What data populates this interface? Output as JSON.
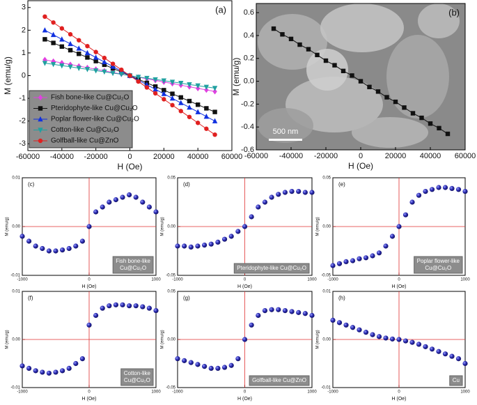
{
  "chart_data": [
    {
      "type": "line",
      "label": "(a)",
      "xlabel": "H (Oe)",
      "ylabel": "M (emu/g)",
      "xlim": [
        -60000,
        60000
      ],
      "xticks": [
        -60000,
        -40000,
        -20000,
        0,
        20000,
        40000,
        60000
      ],
      "ylim": [
        -3.3,
        3.3
      ],
      "yticks": [
        -3,
        -2,
        -1,
        0,
        1,
        2,
        3
      ],
      "legend": "lower left",
      "x": [
        -50000,
        -45000,
        -40000,
        -35000,
        -30000,
        -25000,
        -20000,
        -15000,
        -10000,
        -5000,
        0,
        5000,
        10000,
        15000,
        20000,
        25000,
        30000,
        35000,
        40000,
        45000,
        50000
      ],
      "series": [
        {
          "name": "Fish bone-like Cu@Cu₂O",
          "color": "#e040e0",
          "marker": "diamond",
          "values": [
            0.7,
            0.63,
            0.56,
            0.49,
            0.42,
            0.35,
            0.28,
            0.21,
            0.14,
            0.07,
            0,
            -0.07,
            -0.14,
            -0.21,
            -0.28,
            -0.35,
            -0.42,
            -0.49,
            -0.56,
            -0.63,
            -0.7
          ]
        },
        {
          "name": "Pteridophyte-like Cu@Cu₂O",
          "color": "#111111",
          "marker": "square",
          "values": [
            1.6,
            1.44,
            1.28,
            1.12,
            0.96,
            0.8,
            0.64,
            0.48,
            0.32,
            0.16,
            0,
            -0.16,
            -0.32,
            -0.48,
            -0.64,
            -0.8,
            -0.96,
            -1.12,
            -1.28,
            -1.44,
            -1.6
          ]
        },
        {
          "name": "Poplar flower-like Cu@Cu₂O",
          "color": "#1030e0",
          "marker": "triangle",
          "values": [
            2.0,
            1.8,
            1.6,
            1.4,
            1.2,
            1.0,
            0.8,
            0.6,
            0.4,
            0.2,
            0,
            -0.2,
            -0.4,
            -0.6,
            -0.8,
            -1.0,
            -1.2,
            -1.4,
            -1.6,
            -1.8,
            -2.0
          ]
        },
        {
          "name": "Cotton-like Cu@Cu₂O",
          "color": "#20a0a0",
          "marker": "down",
          "values": [
            0.55,
            0.5,
            0.44,
            0.39,
            0.33,
            0.28,
            0.22,
            0.17,
            0.11,
            0.06,
            0,
            -0.06,
            -0.11,
            -0.17,
            -0.22,
            -0.28,
            -0.33,
            -0.39,
            -0.44,
            -0.5,
            -0.55
          ]
        },
        {
          "name": "Golfball-like Cu@ZnO",
          "color": "#e02020",
          "marker": "circle",
          "values": [
            2.6,
            2.34,
            2.08,
            1.82,
            1.56,
            1.3,
            1.04,
            0.78,
            0.52,
            0.26,
            0,
            -0.26,
            -0.52,
            -0.78,
            -1.04,
            -1.3,
            -1.56,
            -1.82,
            -2.08,
            -2.34,
            -2.6
          ]
        }
      ]
    },
    {
      "type": "line",
      "label": "(b)",
      "xlabel": "H (Oe)",
      "ylabel": "M (emu/g)",
      "annotation": "500 nm",
      "xlim": [
        -60000,
        60000
      ],
      "xticks": [
        -60000,
        -40000,
        -20000,
        0,
        20000,
        40000,
        60000
      ],
      "ylim": [
        -0.6,
        0.68
      ],
      "yticks": [
        -0.6,
        -0.4,
        -0.2,
        {
          "value": 0,
          "label": "0.0"
        },
        0.2,
        0.4,
        0.6
      ],
      "x": [
        -50000,
        -45000,
        -40000,
        -35000,
        -30000,
        -25000,
        -20000,
        -15000,
        -10000,
        -5000,
        0,
        5000,
        10000,
        15000,
        20000,
        25000,
        30000,
        35000,
        40000,
        45000,
        50000
      ],
      "series": [
        {
          "color": "#111111",
          "marker": "square",
          "values": [
            0.46,
            0.41,
            0.37,
            0.32,
            0.28,
            0.23,
            0.18,
            0.14,
            0.09,
            0.05,
            0,
            -0.05,
            -0.09,
            -0.14,
            -0.18,
            -0.23,
            -0.28,
            -0.32,
            -0.37,
            -0.41,
            -0.46
          ]
        }
      ]
    },
    {
      "type": "scatter",
      "label": "(c)",
      "xlabel": "H (Oe)",
      "ylabel": "M (emu/g)",
      "label_lines": [
        "Fish bone-like",
        "Cu@Cu₂O"
      ],
      "xlim": [
        -1000,
        1000
      ],
      "xticks": [
        -1000,
        0,
        1000
      ],
      "ylim": [
        -0.01,
        0.01
      ],
      "yticks": [
        -0.01,
        {
          "value": 0,
          "label": "0.00"
        },
        0.01
      ],
      "x": [
        -1000,
        -900,
        -800,
        -700,
        -600,
        -500,
        -400,
        -300,
        -200,
        -100,
        0,
        100,
        200,
        300,
        400,
        500,
        600,
        700,
        800,
        900,
        1000
      ],
      "values": [
        -0.002,
        -0.003,
        -0.004,
        -0.0045,
        -0.005,
        -0.005,
        -0.0048,
        -0.0045,
        -0.004,
        -0.003,
        0.0,
        0.003,
        0.004,
        0.005,
        0.0055,
        0.006,
        0.0065,
        0.006,
        0.005,
        0.004,
        0.003
      ]
    },
    {
      "type": "scatter",
      "label": "(d)",
      "xlabel": "H (Oe)",
      "ylabel": "M (emu/g)",
      "label_lines": [
        "Pteridophyte-like Cu@Cu₂O"
      ],
      "xlim": [
        -1000,
        1000
      ],
      "xticks": [
        -1000,
        0,
        1000
      ],
      "ylim": [
        -0.05,
        0.05
      ],
      "yticks": [
        -0.05,
        {
          "value": 0,
          "label": "0.00"
        },
        0.05
      ],
      "x": [
        -1000,
        -900,
        -800,
        -700,
        -600,
        -500,
        -400,
        -300,
        -200,
        -100,
        0,
        100,
        200,
        300,
        400,
        500,
        600,
        700,
        800,
        900,
        1000
      ],
      "values": [
        -0.02,
        -0.02,
        -0.021,
        -0.02,
        -0.019,
        -0.018,
        -0.016,
        -0.013,
        -0.01,
        -0.005,
        0.0,
        0.01,
        0.02,
        0.025,
        0.03,
        0.033,
        0.035,
        0.036,
        0.036,
        0.035,
        0.035
      ]
    },
    {
      "type": "scatter",
      "label": "(e)",
      "xlabel": "H (Oe)",
      "ylabel": "M (emu/g)",
      "label_lines": [
        "Poplar flower-like",
        "Cu@Cu₂O"
      ],
      "xlim": [
        -1000,
        1000
      ],
      "xticks": [
        -1000,
        0,
        1000
      ],
      "ylim": [
        -0.05,
        0.05
      ],
      "yticks": [
        -0.05,
        {
          "value": 0,
          "label": "0.00"
        },
        0.05
      ],
      "x": [
        -1000,
        -900,
        -800,
        -700,
        -600,
        -500,
        -400,
        -300,
        -200,
        -100,
        0,
        100,
        200,
        300,
        400,
        500,
        600,
        700,
        800,
        900,
        1000
      ],
      "values": [
        -0.04,
        -0.038,
        -0.036,
        -0.035,
        -0.033,
        -0.032,
        -0.03,
        -0.027,
        -0.02,
        -0.01,
        0.0,
        0.012,
        0.025,
        0.032,
        0.036,
        0.038,
        0.04,
        0.04,
        0.039,
        0.038,
        0.036
      ]
    },
    {
      "type": "scatter",
      "label": "(f)",
      "xlabel": "H (Oe)",
      "ylabel": "M (emu/g)",
      "label_lines": [
        "Cotton-like",
        "Cu@Cu₂O"
      ],
      "xlim": [
        -1000,
        1000
      ],
      "xticks": [
        -1000,
        0,
        1000
      ],
      "ylim": [
        -0.01,
        0.01
      ],
      "yticks": [
        -0.01,
        {
          "value": 0,
          "label": "0.00"
        },
        0.01
      ],
      "x": [
        -1000,
        -900,
        -800,
        -700,
        -600,
        -500,
        -400,
        -300,
        -200,
        -100,
        0,
        100,
        200,
        300,
        400,
        500,
        600,
        700,
        800,
        900,
        1000
      ],
      "values": [
        -0.0055,
        -0.006,
        -0.0065,
        -0.0068,
        -0.007,
        -0.0068,
        -0.0065,
        -0.006,
        -0.005,
        -0.004,
        0.003,
        0.005,
        0.0065,
        0.007,
        0.0072,
        0.0072,
        0.007,
        0.007,
        0.0068,
        0.0065,
        0.006
      ]
    },
    {
      "type": "scatter",
      "label": "(g)",
      "xlabel": "H (Oe)",
      "ylabel": "M (emu/g)",
      "label_lines": [
        "Golfball-like Cu@ZnO"
      ],
      "xlim": [
        -1000,
        1000
      ],
      "xticks": [
        -1000,
        0,
        1000
      ],
      "ylim": [
        -0.05,
        0.05
      ],
      "yticks": [
        -0.05,
        {
          "value": 0,
          "label": "0.00"
        },
        0.05
      ],
      "x": [
        -1000,
        -900,
        -800,
        -700,
        -600,
        -500,
        -400,
        -300,
        -200,
        -100,
        0,
        100,
        200,
        300,
        400,
        500,
        600,
        700,
        800,
        900,
        1000
      ],
      "values": [
        -0.02,
        -0.022,
        -0.024,
        -0.026,
        -0.028,
        -0.03,
        -0.03,
        -0.029,
        -0.027,
        -0.02,
        0.0,
        0.015,
        0.025,
        0.03,
        0.031,
        0.031,
        0.03,
        0.029,
        0.028,
        0.027,
        0.025
      ]
    },
    {
      "type": "scatter",
      "label": "(h)",
      "xlabel": "H (Oe)",
      "ylabel": "M (emu/g)",
      "label_lines": [
        "Cu"
      ],
      "xlim": [
        -1000,
        1000
      ],
      "xticks": [
        -1000,
        0,
        1000
      ],
      "ylim": [
        -0.01,
        0.01
      ],
      "yticks": [
        -0.01,
        {
          "value": 0,
          "label": "0.00"
        },
        0.01
      ],
      "x": [
        -1000,
        -900,
        -800,
        -700,
        -600,
        -500,
        -400,
        -300,
        -200,
        -100,
        0,
        100,
        200,
        300,
        400,
        500,
        600,
        700,
        800,
        900,
        1000
      ],
      "values": [
        0.004,
        0.0035,
        0.003,
        0.0025,
        0.002,
        0.0015,
        0.001,
        0.0006,
        0.0003,
        0.0001,
        0.0,
        -0.0003,
        -0.0006,
        -0.001,
        -0.0015,
        -0.002,
        -0.0025,
        -0.003,
        -0.0035,
        -0.004,
        -0.005
      ]
    }
  ]
}
